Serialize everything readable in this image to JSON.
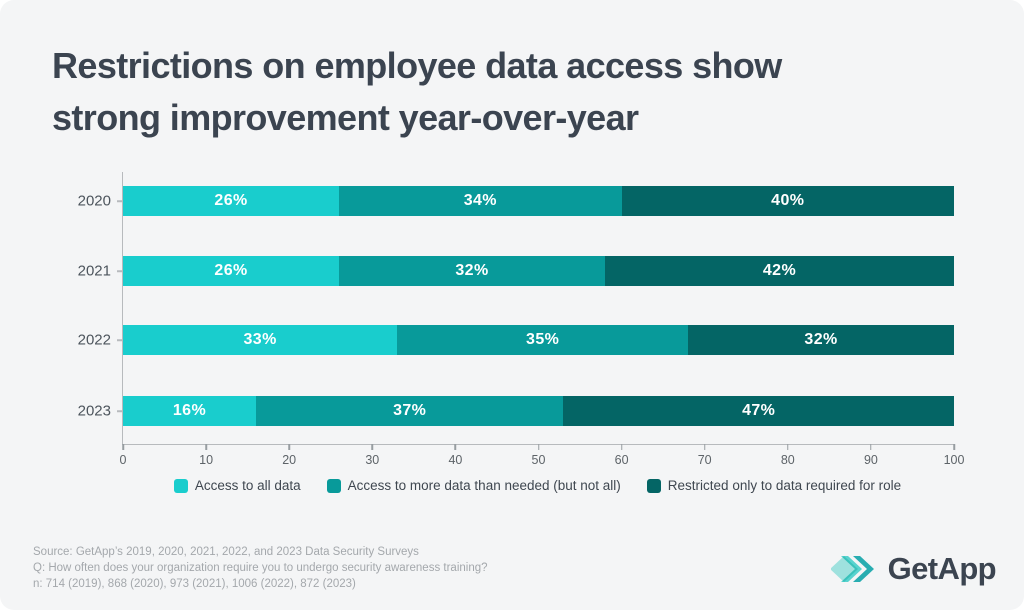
{
  "page": {
    "background": "#f4f5f6",
    "title_line1": "Restrictions on employee data access show",
    "title_line2": "strong improvement year-over-year",
    "title_color": "#3b4450"
  },
  "chart_data": {
    "type": "bar",
    "orientation": "horizontal-stacked",
    "title": "Restrictions on employee data access show strong improvement year-over-year",
    "categories": [
      "2020",
      "2021",
      "2022",
      "2023"
    ],
    "series": [
      {
        "name": "Access to all data",
        "color": "#19cdcd",
        "values": [
          26,
          26,
          33,
          16
        ]
      },
      {
        "name": "Access to more data than needed (but not all)",
        "color": "#089a9a",
        "values": [
          34,
          32,
          35,
          37
        ]
      },
      {
        "name": "Restricted only to data required for role",
        "color": "#046565",
        "values": [
          40,
          42,
          32,
          47
        ]
      }
    ],
    "value_label_format": "{v}%",
    "xlabel": "",
    "ylabel": "",
    "xlim": [
      0,
      100
    ],
    "x_ticks": [
      0,
      10,
      20,
      30,
      40,
      50,
      60,
      70,
      80,
      90,
      100
    ],
    "grid": false,
    "legend_position": "bottom"
  },
  "footer": {
    "source_line": "Source: GetApp’s 2019, 2020, 2021, 2022, and 2023 Data Security Surveys",
    "question_line": "Q: How often does your organization require you to undergo security awareness training?",
    "sample_line": "n: 714 (2019), 868 (2020), 973 (2021), 1006 (2022), 872 (2023)"
  },
  "logo": {
    "text": "GetApp",
    "mark_colors": [
      "#9ce9e4",
      "#45d8d2",
      "#16aeb2"
    ]
  }
}
